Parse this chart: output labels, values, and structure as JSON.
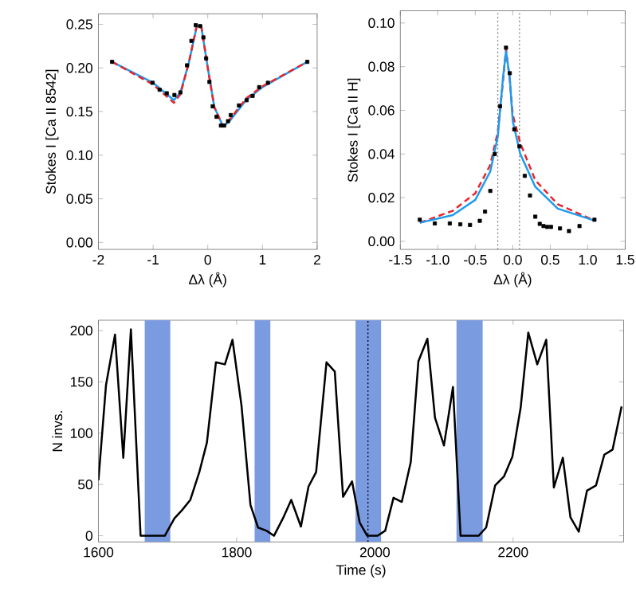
{
  "chart_data": [
    {
      "type": "line",
      "xlabel": "Δλ (Å)",
      "ylabel": "Stokes I [Ca II 8542]",
      "xlim": [
        -2,
        2
      ],
      "ylim": [
        -0.008,
        0.262
      ],
      "xticks": [
        -2,
        -1,
        0,
        1,
        2
      ],
      "yticks": [
        {
          "value": 0,
          "label": "0.00"
        },
        0.05,
        {
          "value": 0.1,
          "label": "0.10"
        },
        0.15,
        {
          "value": 0.2,
          "label": "0.20"
        },
        0.25
      ],
      "series": [
        {
          "type": "line",
          "color": "#1e9bf0",
          "line_style": "solid",
          "x": [
            -1.75,
            -1.0,
            -0.62,
            -0.5,
            -0.35,
            -0.2,
            -0.12,
            0,
            0.12,
            0.28,
            0.4,
            0.7,
            1.0,
            1.82
          ],
          "values": [
            0.207,
            0.183,
            0.163,
            0.172,
            0.205,
            0.248,
            0.248,
            0.2,
            0.155,
            0.133,
            0.139,
            0.163,
            0.178,
            0.207
          ]
        },
        {
          "type": "line",
          "color": "#e8262a",
          "line_style": "dashed",
          "x": [
            -1.75,
            -1.0,
            -0.62,
            -0.5,
            -0.35,
            -0.2,
            -0.12,
            0,
            0.12,
            0.28,
            0.4,
            0.7,
            1.0,
            1.82
          ],
          "values": [
            0.207,
            0.181,
            0.16,
            0.17,
            0.205,
            0.249,
            0.248,
            0.2,
            0.155,
            0.133,
            0.141,
            0.165,
            0.179,
            0.207
          ]
        },
        {
          "type": "scatter",
          "color": "#000000",
          "marker": "square",
          "x": [
            -1.75,
            -1.01,
            -0.88,
            -0.75,
            -0.61,
            -0.5,
            -0.38,
            -0.3,
            -0.22,
            -0.14,
            -0.08,
            -0.03,
            0.03,
            0.09,
            0.16,
            0.24,
            0.3,
            0.37,
            0.42,
            0.57,
            0.71,
            0.82,
            0.94,
            1.1,
            1.82
          ],
          "values": [
            0.207,
            0.183,
            0.175,
            0.171,
            0.169,
            0.172,
            0.203,
            0.231,
            0.249,
            0.248,
            0.235,
            0.211,
            0.184,
            0.156,
            0.144,
            0.134,
            0.134,
            0.139,
            0.146,
            0.157,
            0.163,
            0.168,
            0.178,
            0.183,
            0.207
          ]
        }
      ]
    },
    {
      "type": "line",
      "xlabel": "Δλ (Å)",
      "ylabel": "Stokes I [Ca II H]",
      "xlim": [
        -1.5,
        1.5
      ],
      "ylim": [
        -0.0037,
        0.1056
      ],
      "xticks": [
        -1.5,
        {
          "value": -1,
          "label": "-1.0"
        },
        -0.5,
        {
          "value": 0,
          "label": "0.0"
        },
        0.5,
        {
          "value": 1,
          "label": "1.0"
        },
        1.5
      ],
      "yticks": [
        {
          "value": 0,
          "label": "0.00"
        },
        0.02,
        0.04,
        0.06,
        0.08,
        {
          "value": 0.1,
          "label": "0.10"
        }
      ],
      "ref_lines": [
        {
          "axis": "x",
          "value": -0.2,
          "color": "#808080",
          "line_style": "dotted"
        },
        {
          "axis": "x",
          "value": 0.09,
          "color": "#808080",
          "line_style": "dotted"
        }
      ],
      "series": [
        {
          "type": "line",
          "color": "#e8262a",
          "line_style": "dashed",
          "x": [
            -1.24,
            -0.8,
            -0.5,
            -0.3,
            -0.2,
            -0.14,
            -0.09,
            -0.04,
            0,
            0.1,
            0.3,
            0.6,
            1.09
          ],
          "values": [
            0.0085,
            0.014,
            0.022,
            0.035,
            0.05,
            0.07,
            0.088,
            0.074,
            0.058,
            0.045,
            0.028,
            0.017,
            0.0095
          ]
        },
        {
          "type": "line",
          "color": "#1e9bf0",
          "line_style": "solid",
          "x": [
            -1.24,
            -0.8,
            -0.5,
            -0.3,
            -0.2,
            -0.13,
            -0.09,
            -0.04,
            0,
            0.1,
            0.3,
            0.6,
            1.09
          ],
          "values": [
            0.0085,
            0.012,
            0.019,
            0.032,
            0.048,
            0.075,
            0.087,
            0.075,
            0.055,
            0.04,
            0.025,
            0.015,
            0.0095
          ]
        },
        {
          "type": "scatter",
          "color": "#000000",
          "marker": "square",
          "x": [
            -1.24,
            -1.04,
            -0.84,
            -0.7,
            -0.57,
            -0.44,
            -0.37,
            -0.3,
            -0.24,
            -0.17,
            -0.09,
            -0.04,
            0.02,
            0.09,
            0.16,
            0.23,
            0.3,
            0.36,
            0.41,
            0.46,
            0.51,
            0.63,
            0.75,
            0.89,
            1.09
          ],
          "values": [
            0.0099,
            0.0082,
            0.0082,
            0.0078,
            0.0075,
            0.0094,
            0.0136,
            0.0231,
            0.04,
            0.0619,
            0.0887,
            0.077,
            0.0513,
            0.0435,
            0.03,
            0.021,
            0.0113,
            0.008,
            0.007,
            0.0066,
            0.0066,
            0.0059,
            0.0047,
            0.007,
            0.0099
          ]
        }
      ]
    },
    {
      "type": "line",
      "xlabel": "Time (s)",
      "ylabel": "N invs.",
      "xlim": [
        1600,
        2360
      ],
      "ylim": [
        -6,
        210
      ],
      "xticks": [
        1600,
        1800,
        2000,
        2200
      ],
      "yticks": [
        0,
        50,
        100,
        150,
        200
      ],
      "bands": [
        {
          "axis": "x",
          "from": 1667,
          "to": 1704,
          "color": "#7b9be0"
        },
        {
          "axis": "x",
          "from": 1826,
          "to": 1849,
          "color": "#7b9be0"
        },
        {
          "axis": "x",
          "from": 1972,
          "to": 2009,
          "color": "#7b9be0"
        },
        {
          "axis": "x",
          "from": 2118,
          "to": 2156,
          "color": "#7b9be0"
        }
      ],
      "ref_lines": [
        {
          "axis": "x",
          "value": 1990,
          "color": "#000000",
          "line_style": "dotted"
        }
      ],
      "series": [
        {
          "type": "line",
          "color": "#000000",
          "line_style": "solid",
          "x": [
            1600,
            1611,
            1624,
            1636,
            1647,
            1661,
            1696,
            1710,
            1721,
            1733,
            1746,
            1757,
            1770,
            1783,
            1794,
            1807,
            1820,
            1831,
            1843,
            1854,
            1867,
            1879,
            1893,
            1904,
            1915,
            1930,
            1942,
            1954,
            1967,
            1978,
            1989,
            2004,
            2015,
            2027,
            2039,
            2052,
            2063,
            2076,
            2087,
            2100,
            2113,
            2124,
            2150,
            2161,
            2174,
            2187,
            2199,
            2211,
            2222,
            2235,
            2248,
            2259,
            2272,
            2283,
            2295,
            2307,
            2320,
            2332,
            2344,
            2357
          ],
          "values": [
            54,
            147,
            196,
            76,
            201,
            0,
            0,
            17,
            25,
            35,
            62,
            91,
            169,
            167,
            191,
            127,
            30,
            8,
            5,
            0,
            17,
            35,
            9,
            48,
            62,
            169,
            160,
            38,
            53,
            13,
            0,
            0,
            5,
            37,
            33,
            72,
            170,
            192,
            115,
            88,
            145,
            0,
            0,
            8,
            49,
            58,
            77,
            125,
            198,
            167,
            191,
            47,
            76,
            18,
            4,
            44,
            49,
            79,
            84,
            126
          ]
        }
      ]
    }
  ]
}
